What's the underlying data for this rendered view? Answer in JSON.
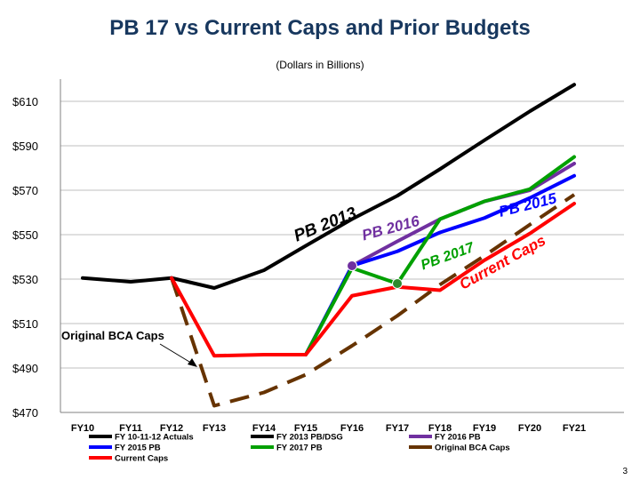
{
  "title": "PB 17 vs Current Caps and Prior Budgets",
  "subtitle": "(Dollars in Billions)",
  "page_number": "3",
  "chart_data": {
    "type": "line",
    "categories": [
      "FY10",
      "FY11",
      "FY12",
      "FY13",
      "FY14",
      "FY15",
      "FY16",
      "FY17",
      "FY18",
      "FY19",
      "FY20",
      "FY21"
    ],
    "ylim": [
      470,
      620
    ],
    "y_ticks": [
      470,
      490,
      510,
      530,
      550,
      570,
      590,
      610
    ],
    "y_tick_labels": [
      "$470",
      "$490",
      "$510",
      "$530",
      "$550",
      "$570",
      "$590",
      "$610"
    ],
    "grid": true,
    "legend_position": "bottom",
    "series": [
      {
        "name": "FY 10-11-12 Actuals",
        "color": "#000000",
        "x": [
          0,
          1,
          2
        ],
        "values": [
          530.5,
          528.8,
          530.5
        ]
      },
      {
        "name": "FY 2013 PB/DSG",
        "color": "#000000",
        "x": [
          2,
          3,
          4,
          5,
          6,
          7,
          8,
          9,
          10,
          11
        ],
        "values": [
          530.5,
          526,
          534,
          545,
          557,
          567.5,
          579.5,
          592.5,
          605.5,
          617.5
        ]
      },
      {
        "name": "FY 2016 PB",
        "color": "#7030a0",
        "x": [
          6,
          7,
          8,
          9,
          10,
          11
        ],
        "values": [
          536,
          547,
          557,
          565,
          570,
          582
        ]
      },
      {
        "name": "FY 2015 PB",
        "color": "#0000ff",
        "x": [
          5,
          6,
          7,
          8,
          9,
          10,
          11
        ],
        "values": [
          496,
          536,
          542.5,
          551,
          557.5,
          566.5,
          576.5
        ]
      },
      {
        "name": "FY 2017 PB",
        "color": "#00a000",
        "x": [
          5,
          6,
          7,
          8,
          9,
          10,
          11
        ],
        "values": [
          496,
          535,
          528,
          557,
          565,
          570.5,
          585
        ]
      },
      {
        "name": "Current Caps",
        "color": "#ff0000",
        "x": [
          2,
          3,
          4,
          5,
          6,
          7,
          8,
          9,
          10,
          11
        ],
        "values": [
          530.5,
          495.5,
          496,
          496,
          522.5,
          526.5,
          525,
          538.5,
          550.5,
          564
        ]
      },
      {
        "name": "Original BCA Caps",
        "color": "#663300",
        "dashed": true,
        "x": [
          2,
          3,
          4,
          5,
          6,
          7,
          8,
          9,
          10,
          11
        ],
        "values": [
          530.5,
          473,
          479,
          487,
          500,
          513.5,
          527.5,
          540.5,
          554.5,
          568
        ]
      }
    ],
    "markers": [
      {
        "series": "FY 2016 PB",
        "x": 6,
        "value": 536,
        "color": "#7030a0"
      },
      {
        "series": "FY 2017 PB",
        "x": 7,
        "value": 528,
        "color": "#2e8b2e"
      }
    ],
    "annotations": [
      {
        "text": "PB 2013",
        "color": "#000000"
      },
      {
        "text": "PB 2016",
        "color": "#7030a0"
      },
      {
        "text": "PB 2015",
        "color": "#0000ff"
      },
      {
        "text": "PB 2017",
        "color": "#00a000"
      },
      {
        "text": "Current Caps",
        "color": "#ff0000"
      },
      {
        "text": "Original BCA Caps",
        "color": "#000000"
      }
    ],
    "legend": [
      {
        "label": "FY 10-11-12 Actuals",
        "color": "#000000"
      },
      {
        "label": "FY 2013 PB/DSG",
        "color": "#000000"
      },
      {
        "label": "FY 2016 PB",
        "color": "#7030a0"
      },
      {
        "label": "FY 2015 PB",
        "color": "#0000ff"
      },
      {
        "label": "FY 2017 PB",
        "color": "#00a000"
      },
      {
        "label": "Original BCA Caps",
        "color": "#663300"
      },
      {
        "label": "Current Caps",
        "color": "#ff0000"
      }
    ]
  }
}
